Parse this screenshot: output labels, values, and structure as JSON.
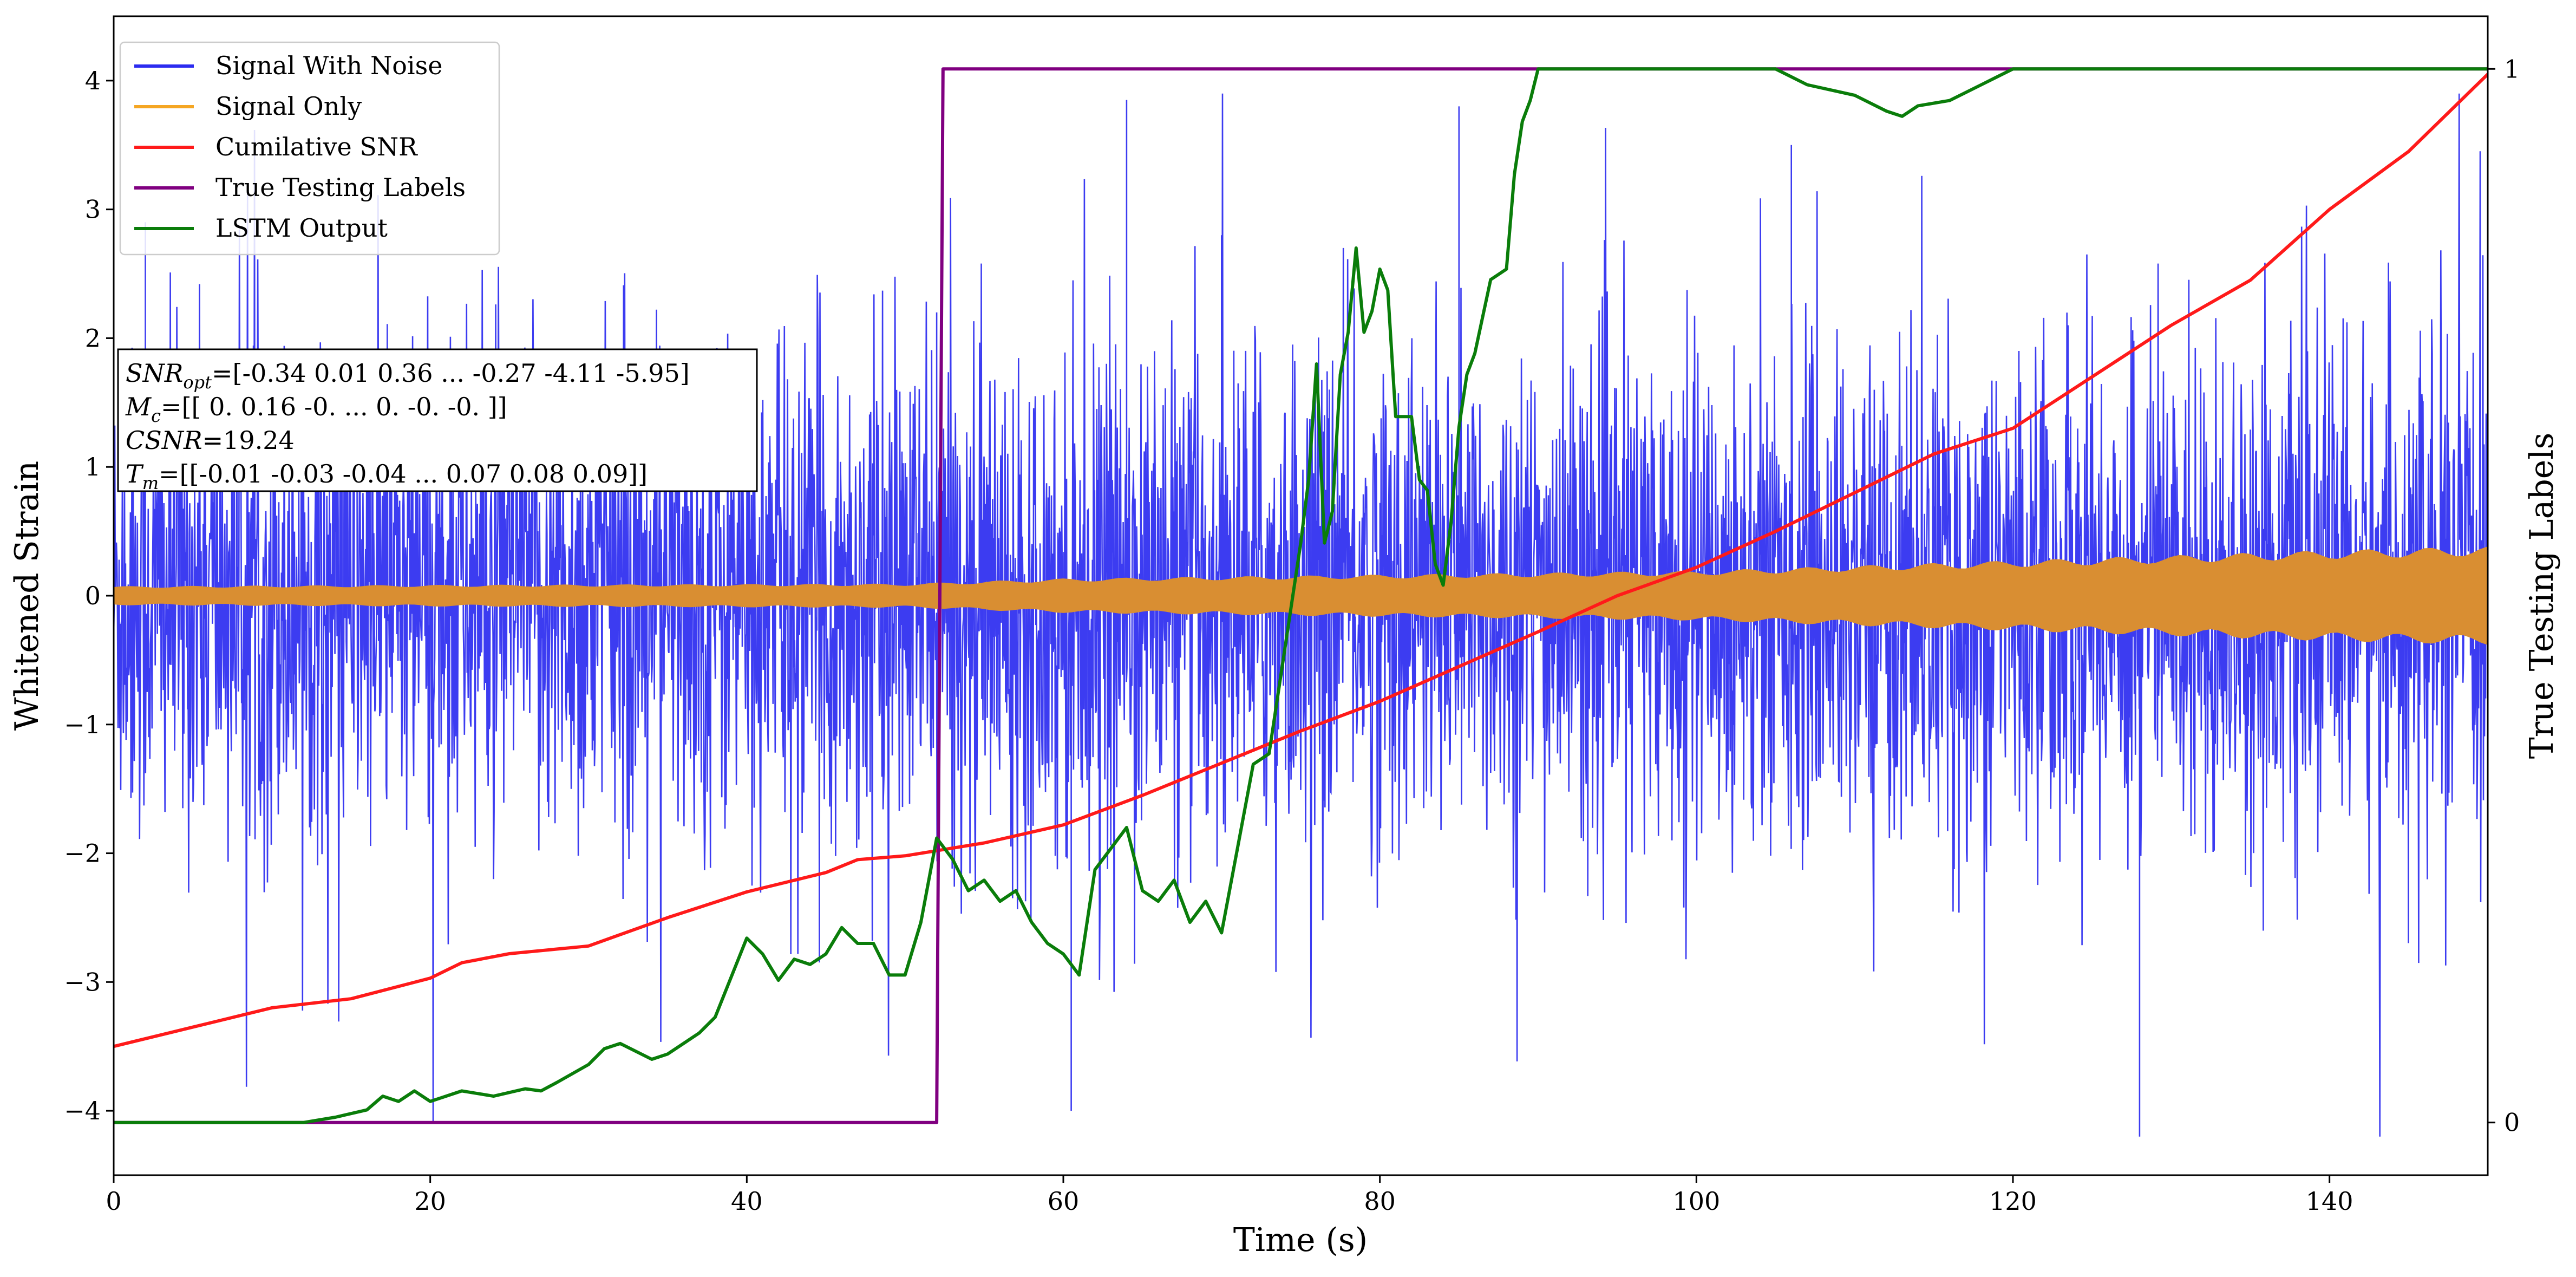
{
  "chart_data": {
    "type": "line",
    "xlabel": "Time (s)",
    "ylabel": "Whitened Strain",
    "y2label": "True Testing Labels",
    "xlim": [
      0,
      150
    ],
    "ylim": [
      -4.5,
      4.5
    ],
    "y2lim": [
      -0.05,
      1.05
    ],
    "x_ticks": [
      0,
      20,
      40,
      60,
      80,
      100,
      120,
      140
    ],
    "y_ticks": [
      -4,
      -3,
      -2,
      -1,
      0,
      1,
      2,
      3,
      4
    ],
    "y2_ticks": [
      0,
      1
    ],
    "grid": false,
    "legend_position": "top-left",
    "legend": [
      {
        "label": "Signal With Noise",
        "color": "#2b2bf0"
      },
      {
        "label": "Signal Only",
        "color": "#f5a623"
      },
      {
        "label": "Cumilative SNR",
        "color": "#ff1a1a"
      },
      {
        "label": "True Testing Labels",
        "color": "#800080"
      },
      {
        "label": "LSTM Output",
        "color": "#0a7d0a"
      }
    ],
    "annotation": {
      "line1_name": "SNR",
      "line1_sub": "opt",
      "line1_value": "=[-0.34  0.01  0.36 ... -0.27 -4.11 -5.95]",
      "line2_name": "M",
      "line2_sub": "c",
      "line2_value": "=[[ 0.    0.16 -0.   ...  0.   -0.   -0.  ]]",
      "line3_name": "CSNR",
      "line3_value": "=19.24",
      "line4_name": "T",
      "line4_sub": "m",
      "line4_value": "=[[-0.01 -0.03 -0.04 ...  0.07  0.08  0.09]]"
    },
    "series": [
      {
        "name": "Signal With Noise",
        "axis": "left",
        "color": "#2b2bf0",
        "description_range": [
          -4.2,
          3.9
        ],
        "notable_peaks": [
          [
            2,
            2.9
          ],
          [
            52,
            2.2
          ],
          [
            64,
            3.85
          ],
          [
            70,
            2.8
          ],
          [
            85,
            3.8
          ],
          [
            128,
            -4.2
          ],
          [
            60.5,
            -4.0
          ],
          [
            106,
            3.5
          ]
        ]
      },
      {
        "name": "Signal Only",
        "axis": "left",
        "color": "#d98e32",
        "envelope_x": [
          0,
          20,
          50,
          60,
          80,
          100,
          120,
          140,
          150
        ],
        "envelope_amp": [
          0.07,
          0.08,
          0.09,
          0.13,
          0.16,
          0.19,
          0.27,
          0.35,
          0.38
        ]
      },
      {
        "name": "Cumilative SNR",
        "axis": "left",
        "color": "#ff1a1a",
        "x": [
          0,
          5,
          10,
          15,
          20,
          22,
          25,
          30,
          35,
          40,
          45,
          47,
          50,
          52,
          55,
          60,
          65,
          70,
          75,
          80,
          85,
          90,
          95,
          100,
          105,
          110,
          115,
          120,
          125,
          130,
          135,
          140,
          145,
          150
        ],
        "y": [
          -3.5,
          -3.35,
          -3.2,
          -3.13,
          -2.97,
          -2.85,
          -2.78,
          -2.72,
          -2.5,
          -2.3,
          -2.15,
          -2.05,
          -2.02,
          -1.98,
          -1.92,
          -1.78,
          -1.55,
          -1.3,
          -1.05,
          -0.82,
          -0.55,
          -0.28,
          0.0,
          0.22,
          0.5,
          0.8,
          1.1,
          1.3,
          1.7,
          2.1,
          2.45,
          3.0,
          3.45,
          4.05
        ]
      },
      {
        "name": "True Testing Labels",
        "axis": "right",
        "color": "#800080",
        "x": [
          0,
          52,
          52.4,
          150
        ],
        "y": [
          0,
          0,
          1,
          1
        ]
      },
      {
        "name": "LSTM Output",
        "axis": "right",
        "color": "#0a7d0a",
        "x": [
          0,
          12,
          14,
          16,
          17,
          18,
          19,
          20,
          22,
          24,
          26,
          27,
          28,
          30,
          31,
          32,
          34,
          35,
          37,
          38,
          40,
          41,
          42,
          43,
          44,
          45,
          46,
          47,
          48,
          49,
          50,
          51,
          52,
          53,
          54,
          55,
          56,
          57,
          58,
          59,
          60,
          61,
          62,
          63,
          64,
          65,
          66,
          67,
          68,
          69,
          70,
          71,
          72,
          73,
          74,
          74.5,
          75,
          75.5,
          76,
          76.5,
          77,
          77.5,
          78,
          78.5,
          79,
          79.5,
          80,
          80.5,
          81,
          82,
          82.5,
          83,
          83.5,
          84,
          84.5,
          85,
          85.5,
          86,
          87,
          88,
          88.5,
          89,
          89.5,
          90,
          91,
          92,
          93,
          95,
          100,
          105,
          107,
          110,
          112,
          113,
          114,
          116,
          118,
          120,
          122,
          124,
          126,
          150
        ],
        "y": [
          0,
          0,
          0.005,
          0.012,
          0.025,
          0.02,
          0.03,
          0.02,
          0.03,
          0.025,
          0.032,
          0.03,
          0.038,
          0.055,
          0.07,
          0.075,
          0.06,
          0.065,
          0.085,
          0.1,
          0.175,
          0.16,
          0.135,
          0.155,
          0.15,
          0.16,
          0.185,
          0.17,
          0.17,
          0.14,
          0.14,
          0.19,
          0.27,
          0.25,
          0.22,
          0.23,
          0.21,
          0.22,
          0.19,
          0.17,
          0.16,
          0.14,
          0.24,
          0.26,
          0.28,
          0.22,
          0.21,
          0.23,
          0.19,
          0.21,
          0.18,
          0.26,
          0.34,
          0.35,
          0.45,
          0.5,
          0.55,
          0.61,
          0.72,
          0.55,
          0.58,
          0.71,
          0.75,
          0.83,
          0.75,
          0.77,
          0.81,
          0.79,
          0.67,
          0.67,
          0.61,
          0.6,
          0.53,
          0.51,
          0.57,
          0.66,
          0.71,
          0.73,
          0.8,
          0.81,
          0.9,
          0.95,
          0.97,
          1.0,
          1.0,
          1.0,
          1.0,
          1.0,
          1.0,
          1.0,
          0.985,
          0.975,
          0.96,
          0.955,
          0.965,
          0.97,
          0.985,
          1.0,
          1.0,
          1.0,
          1.0,
          1.0
        ]
      }
    ]
  }
}
